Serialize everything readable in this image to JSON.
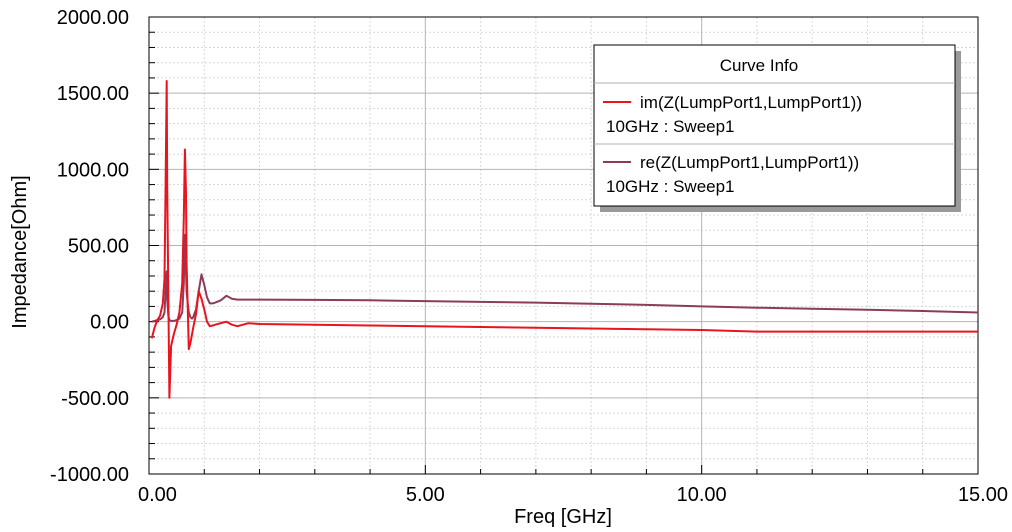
{
  "chart_data": {
    "type": "line",
    "xlabel": "Freq [GHz]",
    "ylabel": "Impedance[Ohm]",
    "xlim": [
      0,
      15
    ],
    "ylim": [
      -1000,
      2000
    ],
    "x_ticks": [
      0,
      5,
      10,
      15
    ],
    "x_tick_labels": [
      "0.00",
      "5.00",
      "10.00",
      "15.00"
    ],
    "y_ticks": [
      -1000,
      -500,
      0,
      500,
      1000,
      1500,
      2000
    ],
    "y_tick_labels": [
      "-1000.00",
      "-500.00",
      "0.00",
      "500.00",
      "1000.00",
      "1500.00",
      "2000.00"
    ],
    "grid": true,
    "legend": {
      "title": "Curve Info",
      "placement": "top-right",
      "entries": [
        {
          "line1": "im(Z(LumpPort1,LumpPort1))",
          "line2": "10GHz : Sweep1"
        },
        {
          "line1": "re(Z(LumpPort1,LumpPort1))",
          "line2": "10GHz : Sweep1"
        }
      ]
    },
    "series": [
      {
        "name": "im(Z(LumpPort1,LumpPort1))",
        "color": "#e8141e",
        "x": [
          0.05,
          0.1,
          0.15,
          0.2,
          0.25,
          0.28,
          0.3,
          0.32,
          0.33,
          0.35,
          0.37,
          0.4,
          0.45,
          0.5,
          0.55,
          0.6,
          0.63,
          0.65,
          0.67,
          0.68,
          0.7,
          0.72,
          0.75,
          0.78,
          0.8,
          0.85,
          0.9,
          0.95,
          1.0,
          1.05,
          1.1,
          1.15,
          1.2,
          1.3,
          1.4,
          1.5,
          1.6,
          1.7,
          1.8,
          2.0,
          3.0,
          4.0,
          5.0,
          6.0,
          7.0,
          8.0,
          9.0,
          10.0,
          11.0,
          12.0,
          13.0,
          14.0,
          15.0
        ],
        "y": [
          -110,
          -40,
          10,
          40,
          120,
          280,
          900,
          1580,
          900,
          200,
          -500,
          -160,
          -80,
          -20,
          60,
          250,
          680,
          1130,
          850,
          380,
          100,
          -180,
          -140,
          -80,
          -40,
          50,
          200,
          150,
          80,
          0,
          -30,
          -25,
          -20,
          -10,
          0,
          -20,
          -30,
          -20,
          -10,
          -15,
          -20,
          -25,
          -30,
          -35,
          -40,
          -45,
          -50,
          -55,
          -65,
          -65,
          -65,
          -65,
          -65
        ]
      },
      {
        "name": "re(Z(LumpPort1,LumpPort1))",
        "color": "#8c3c5a",
        "x": [
          0.05,
          0.1,
          0.15,
          0.2,
          0.25,
          0.28,
          0.3,
          0.32,
          0.33,
          0.35,
          0.37,
          0.4,
          0.45,
          0.5,
          0.55,
          0.6,
          0.63,
          0.65,
          0.67,
          0.68,
          0.7,
          0.72,
          0.75,
          0.78,
          0.8,
          0.85,
          0.9,
          0.95,
          1.0,
          1.05,
          1.1,
          1.15,
          1.2,
          1.3,
          1.4,
          1.5,
          1.6,
          1.8,
          2.0,
          3.0,
          4.0,
          5.0,
          6.0,
          7.0,
          8.0,
          9.0,
          10.0,
          11.0,
          12.0,
          13.0,
          14.0,
          15.0
        ],
        "y": [
          0,
          5,
          10,
          15,
          30,
          60,
          200,
          330,
          150,
          40,
          10,
          5,
          5,
          10,
          20,
          60,
          250,
          570,
          340,
          200,
          120,
          60,
          30,
          20,
          30,
          80,
          200,
          310,
          240,
          160,
          120,
          120,
          125,
          140,
          170,
          150,
          145,
          145,
          145,
          143,
          140,
          135,
          130,
          125,
          118,
          110,
          100,
          92,
          85,
          78,
          70,
          60
        ]
      }
    ]
  }
}
